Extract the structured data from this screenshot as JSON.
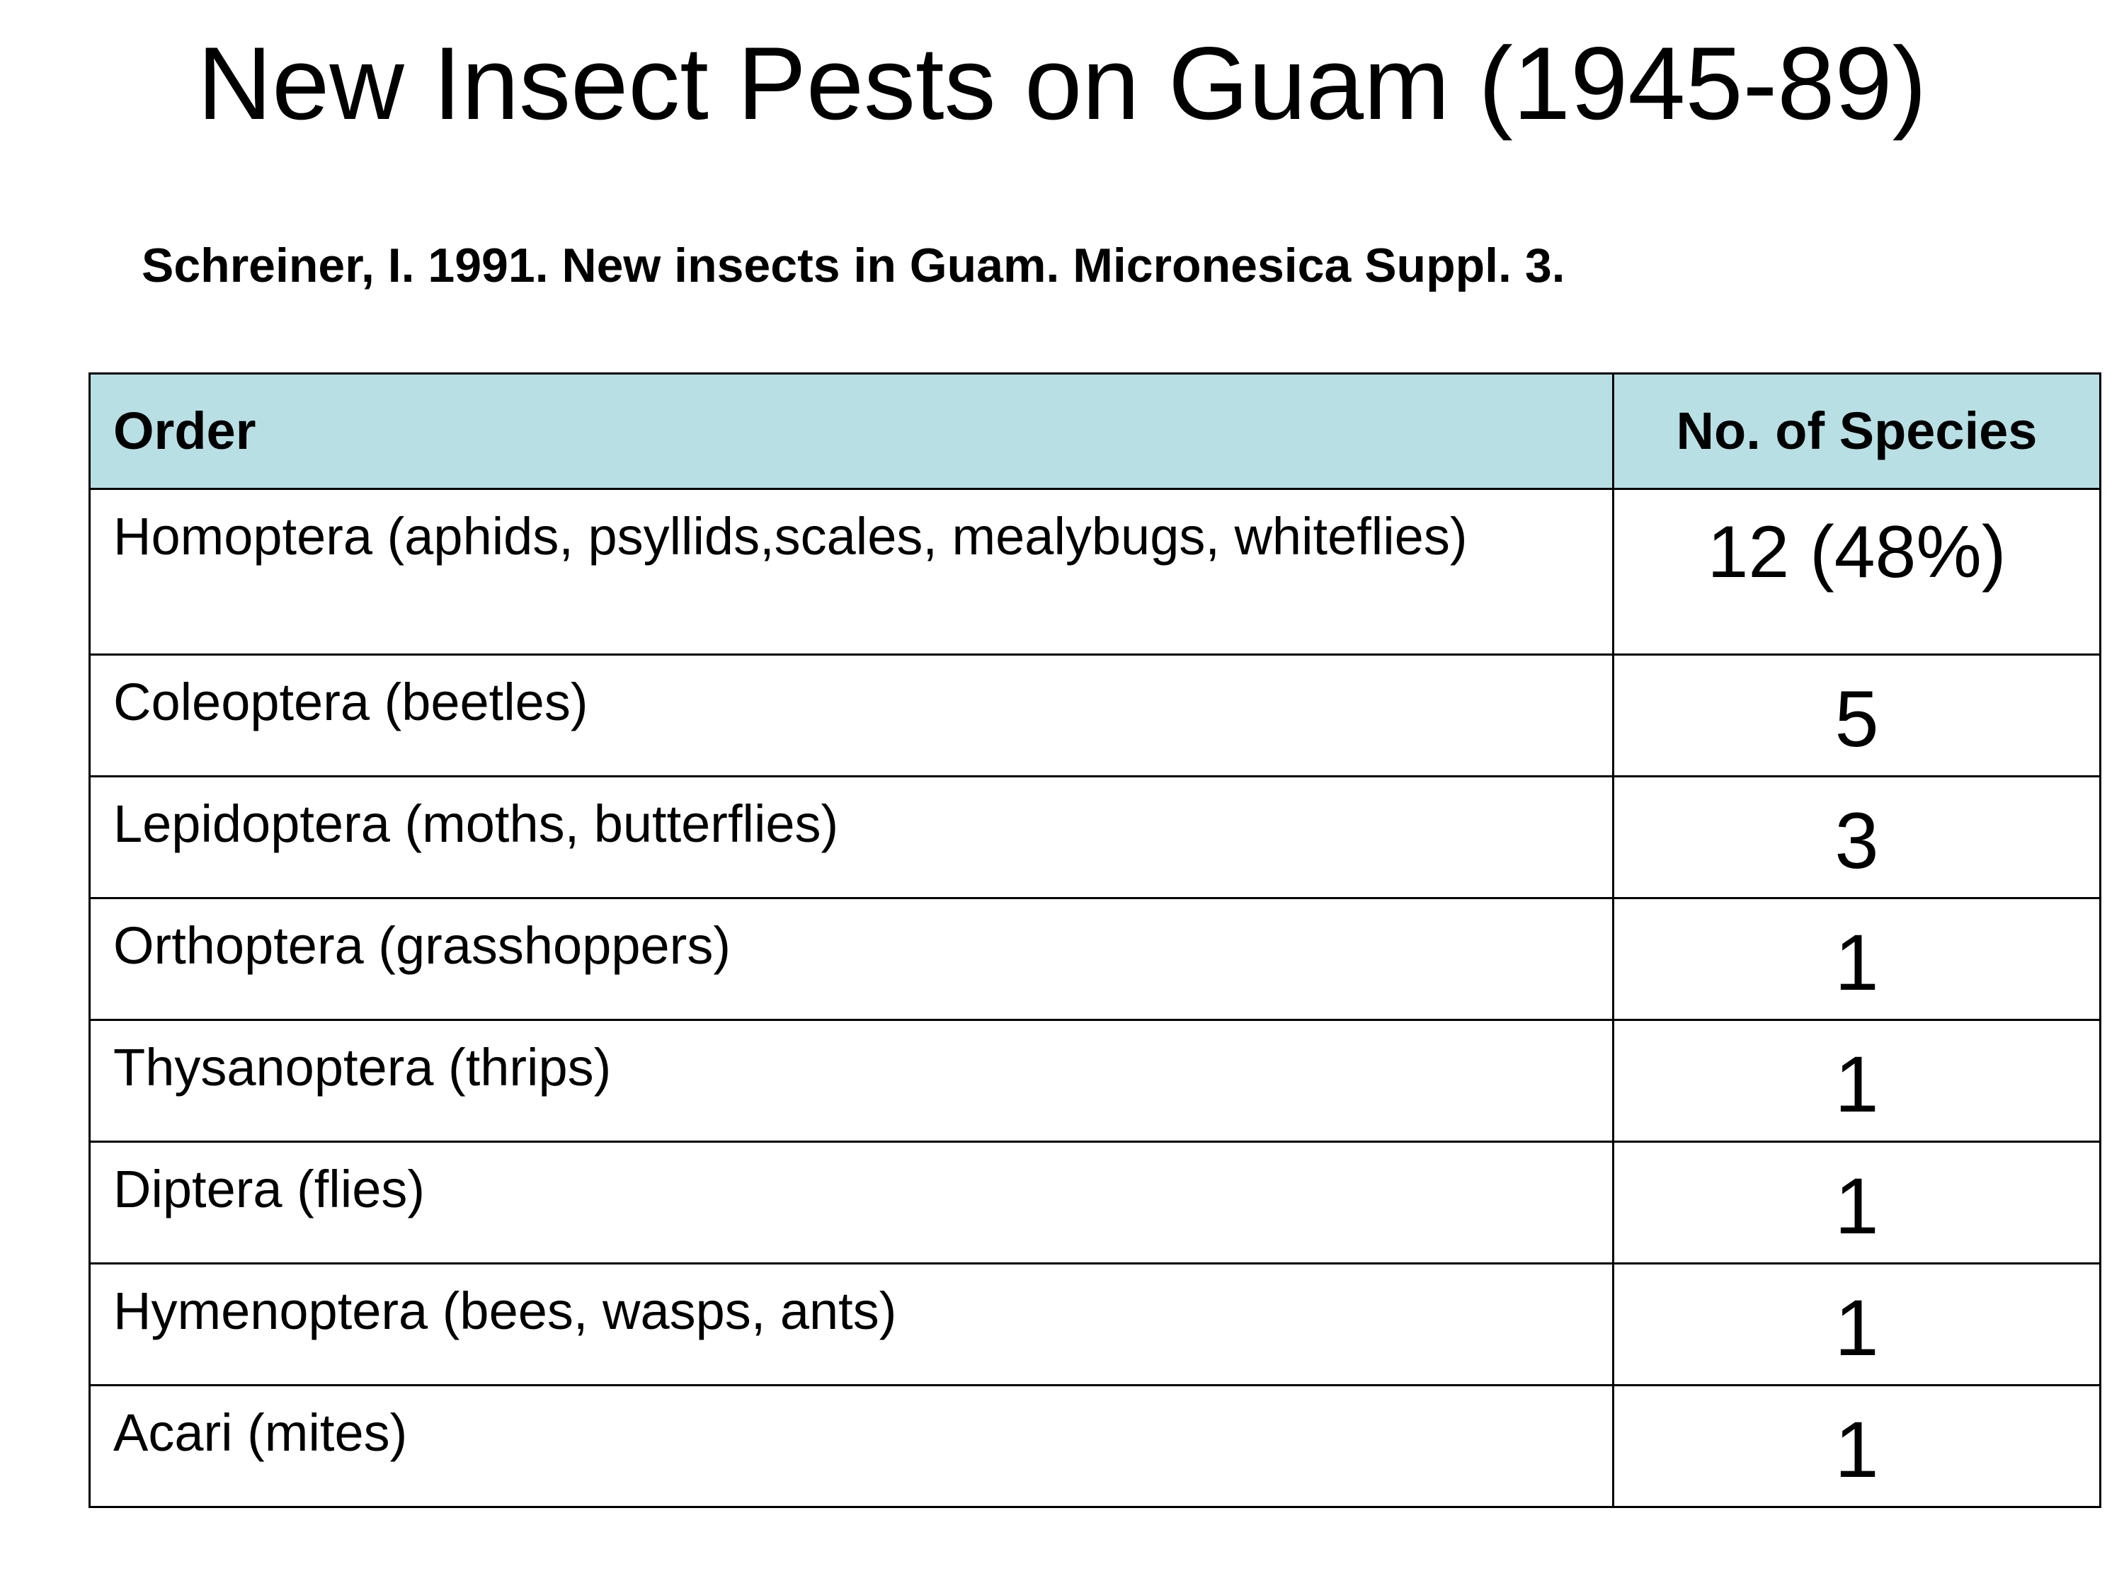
{
  "slide": {
    "title": "New Insect Pests on Guam (1945-89)",
    "citation": "Schreiner, I. 1991. New insects in Guam.  Micronesica Suppl. 3."
  },
  "table": {
    "headers": {
      "order": "Order",
      "count": "No. of Species"
    },
    "rows": [
      {
        "order": "Homoptera (aphids, psyllids,scales, mealybugs, whiteflies)",
        "count": "12 (48%)"
      },
      {
        "order": "Coleoptera (beetles)",
        "count": "5"
      },
      {
        "order": "Lepidoptera (moths, butterflies)",
        "count": "3"
      },
      {
        "order": "Orthoptera (grasshoppers)",
        "count": "1"
      },
      {
        "order": "Thysanoptera (thrips)",
        "count": "1"
      },
      {
        "order": "Diptera (flies)",
        "count": "1"
      },
      {
        "order": "Hymenoptera (bees, wasps, ants)",
        "count": "1"
      },
      {
        "order": "Acari (mites)",
        "count": "1"
      }
    ]
  },
  "colors": {
    "header_background": "#b8e0e4",
    "border": "#000000",
    "text": "#000000"
  }
}
